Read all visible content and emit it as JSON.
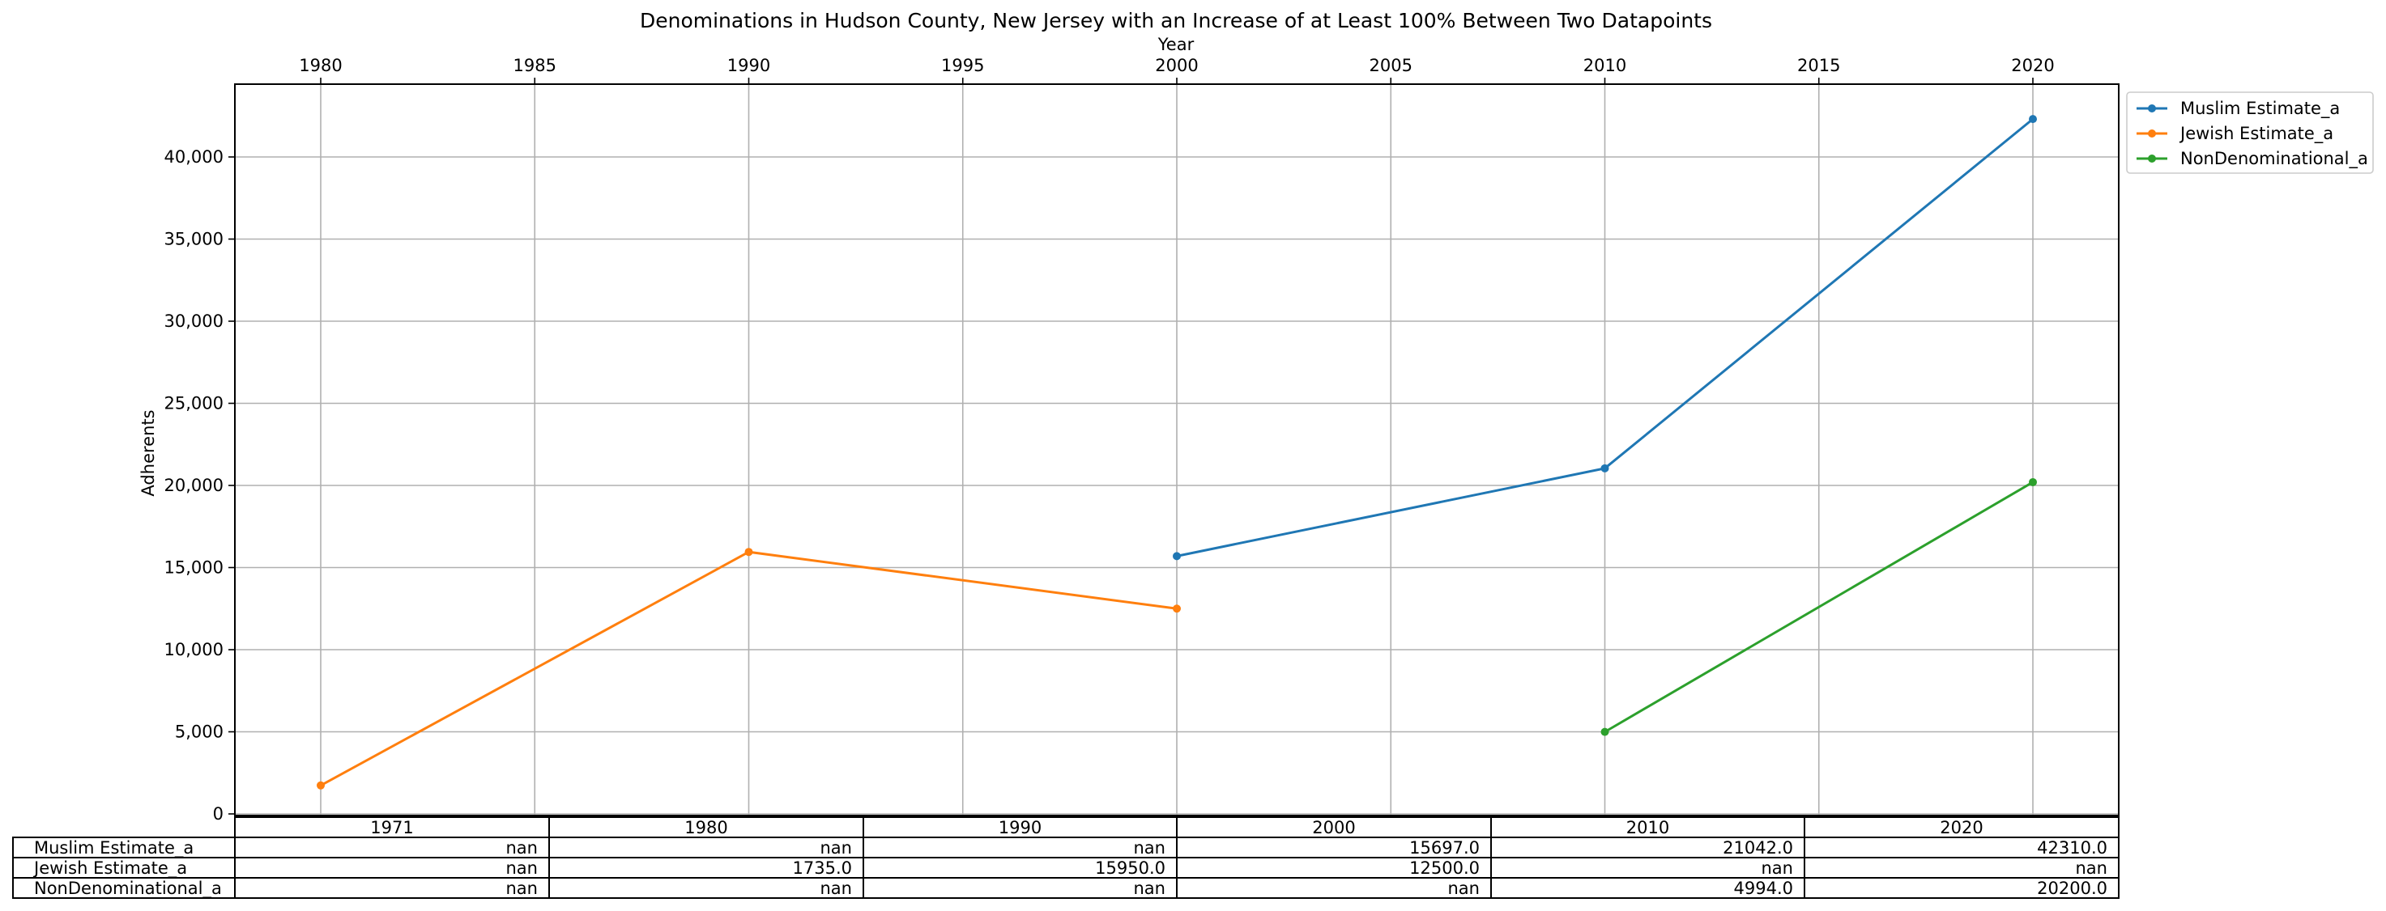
{
  "chart_data": {
    "type": "line",
    "title": "Denominations in Hudson County, New Jersey with an Increase of at Least 100% Between Two Datapoints",
    "xlabel": "Year",
    "ylabel": "Adherents",
    "xlim": [
      1970,
      2020
    ],
    "ylim": [
      0,
      45000
    ],
    "x_ticks": [
      1980,
      1985,
      1990,
      1995,
      2000,
      2005,
      2010,
      2015,
      2020
    ],
    "y_ticks": [
      0,
      5000,
      10000,
      15000,
      20000,
      25000,
      30000,
      35000,
      40000
    ],
    "y_tick_labels": [
      "0",
      "5,000",
      "10,000",
      "15,000",
      "20,000",
      "25,000",
      "30,000",
      "35,000",
      "40,000"
    ],
    "grid": true,
    "legend_position": "outside-top-right",
    "series": [
      {
        "name": "Muslim Estimate_a",
        "color": "#1f77b4",
        "points": [
          [
            2000,
            15697
          ],
          [
            2010,
            21042
          ],
          [
            2020,
            42310
          ]
        ]
      },
      {
        "name": "Jewish Estimate_a",
        "color": "#ff7f0e",
        "points": [
          [
            1980,
            1735
          ],
          [
            1990,
            15950
          ],
          [
            2000,
            12500
          ]
        ]
      },
      {
        "name": "NonDenominational_a",
        "color": "#2ca02c",
        "points": [
          [
            2010,
            4994
          ],
          [
            2020,
            20200
          ]
        ]
      }
    ],
    "table": {
      "columns": [
        "1971",
        "1980",
        "1990",
        "2000",
        "2010",
        "2020"
      ],
      "rows": [
        {
          "label": "Muslim Estimate_a",
          "cells": [
            "nan",
            "nan",
            "nan",
            "15697.0",
            "21042.0",
            "42310.0"
          ]
        },
        {
          "label": "Jewish Estimate_a",
          "cells": [
            "nan",
            "1735.0",
            "15950.0",
            "12500.0",
            "nan",
            "nan"
          ]
        },
        {
          "label": "NonDenominational_a",
          "cells": [
            "nan",
            "nan",
            "nan",
            "nan",
            "4994.0",
            "20200.0"
          ]
        }
      ]
    }
  }
}
